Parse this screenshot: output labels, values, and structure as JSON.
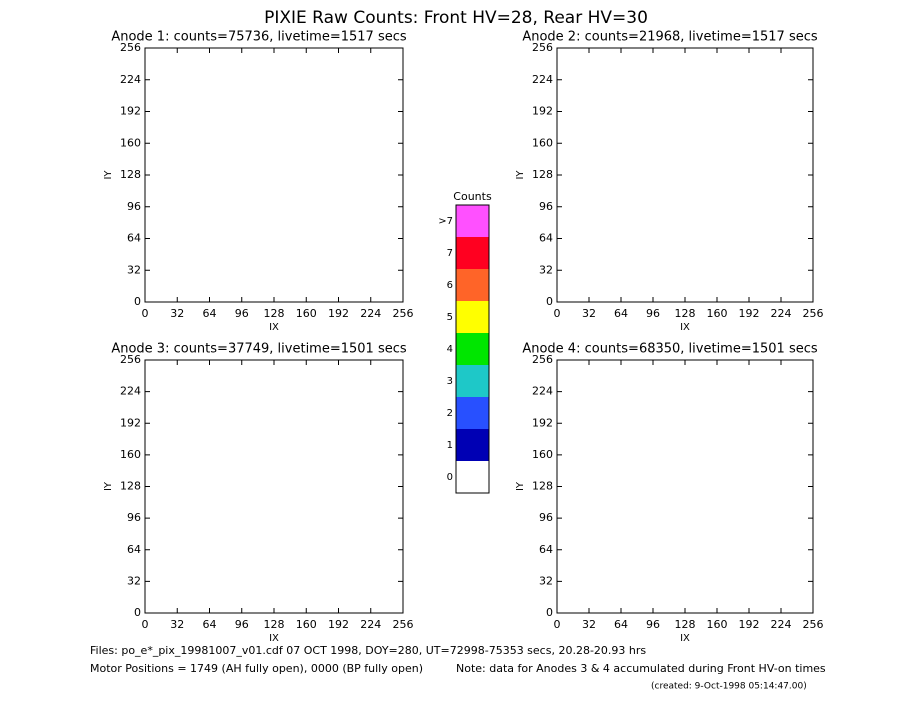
{
  "title": "PIXIE Raw Counts:  Front HV=28, Rear HV=30",
  "chart_data": [
    {
      "type": "heatmap",
      "title": "Anode 1: counts=75736, livetime=1517 secs",
      "xlabel": "IX",
      "ylabel": "IY",
      "xlim": [
        0,
        256
      ],
      "ylim": [
        0,
        256
      ],
      "xticks": [
        0,
        32,
        64,
        96,
        128,
        160,
        192,
        224,
        256
      ],
      "yticks": [
        0,
        32,
        64,
        96,
        128,
        160,
        192,
        224,
        256
      ]
    },
    {
      "type": "heatmap",
      "title": "Anode 2: counts=21968, livetime=1517 secs",
      "xlabel": "IX",
      "ylabel": "IY",
      "xlim": [
        0,
        256
      ],
      "ylim": [
        0,
        256
      ],
      "xticks": [
        0,
        32,
        64,
        96,
        128,
        160,
        192,
        224,
        256
      ],
      "yticks": [
        0,
        32,
        64,
        96,
        128,
        160,
        192,
        224,
        256
      ]
    },
    {
      "type": "heatmap",
      "title": "Anode 3: counts=37749, livetime=1501 secs",
      "xlabel": "IX",
      "ylabel": "IY",
      "xlim": [
        0,
        256
      ],
      "ylim": [
        0,
        256
      ],
      "xticks": [
        0,
        32,
        64,
        96,
        128,
        160,
        192,
        224,
        256
      ],
      "yticks": [
        0,
        32,
        64,
        96,
        128,
        160,
        192,
        224,
        256
      ]
    },
    {
      "type": "heatmap",
      "title": "Anode 4: counts=68350, livetime=1501 secs",
      "xlabel": "IX",
      "ylabel": "IY",
      "xlim": [
        0,
        256
      ],
      "ylim": [
        0,
        256
      ],
      "xticks": [
        0,
        32,
        64,
        96,
        128,
        160,
        192,
        224,
        256
      ],
      "yticks": [
        0,
        32,
        64,
        96,
        128,
        160,
        192,
        224,
        256
      ]
    }
  ],
  "colorbar": {
    "title": "Counts",
    "levels": [
      {
        "label": "0",
        "color": "#ffffff"
      },
      {
        "label": "1",
        "color": "#0000b4"
      },
      {
        "label": "2",
        "color": "#2850ff"
      },
      {
        "label": "3",
        "color": "#1ec8c8"
      },
      {
        "label": "4",
        "color": "#00e600"
      },
      {
        "label": "5",
        "color": "#ffff00"
      },
      {
        "label": "6",
        "color": "#ff6428"
      },
      {
        "label": "7",
        "color": "#ff0020"
      },
      {
        "label": ">7",
        "color": "#ff50ff"
      }
    ]
  },
  "footer": {
    "files": "Files: po_e*_pix_19981007_v01.cdf    07 OCT 1998, DOY=280, UT=72998-75353 secs, 20.28-20.93 hrs",
    "motor": "Motor Positions = 1749 (AH fully open), 0000 (BP fully open)",
    "note": "Note: data for Anodes 3 & 4 accumulated during Front HV-on times",
    "created": "(created:  9-Oct-1998 05:14:47.00)"
  }
}
